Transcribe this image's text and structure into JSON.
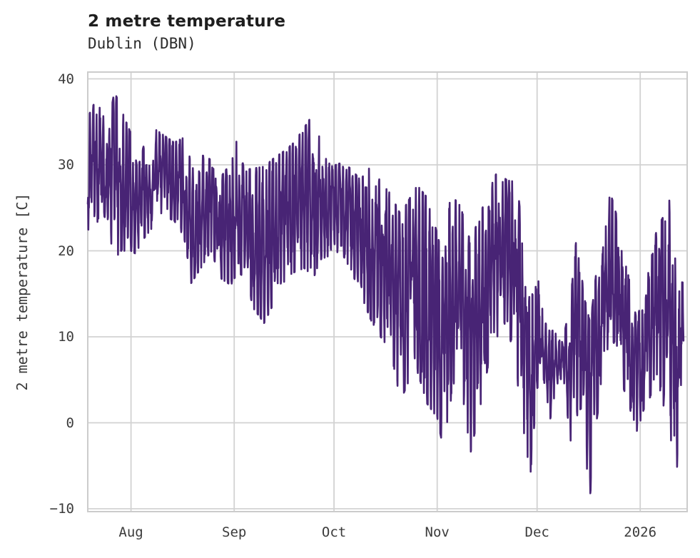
{
  "header": {
    "title": "2 metre temperature",
    "subtitle": "Dublin (DBN)"
  },
  "chart_data": {
    "type": "line",
    "title": "2 metre temperature",
    "subtitle": "Dublin (DBN)",
    "xlabel": "",
    "ylabel": "2 metre temperature [C]",
    "series_name": "2 metre temperature",
    "legend": "none",
    "grid": true,
    "colors": {
      "line": "#482475",
      "grid": "#d2d2d2",
      "plot_border": "#cccccc",
      "title_text": "#1e1e1e",
      "tick_text": "#3b3b3b",
      "background": "#ffffff"
    },
    "y_ticks": [
      {
        "label": "−10",
        "value": -10
      },
      {
        "label": "0",
        "value": 0
      },
      {
        "label": "10",
        "value": 10
      },
      {
        "label": "20",
        "value": 20
      },
      {
        "label": "30",
        "value": 30
      },
      {
        "label": "40",
        "value": 40
      }
    ],
    "ylim": [
      -10.33,
      40.79
    ],
    "x_ticks": [
      {
        "label": "Aug",
        "day": 13
      },
      {
        "label": "Sep",
        "day": 44
      },
      {
        "label": "Oct",
        "day": 74
      },
      {
        "label": "Nov",
        "day": 105
      },
      {
        "label": "Dec",
        "day": 135
      },
      {
        "label": "2026",
        "day": 166
      }
    ],
    "xlim_days": [
      0,
      180.1
    ],
    "data_end_day": 179,
    "sampling": "hourly 2 m air temperature, ~6 months (Jul to mid-Jan)",
    "daily_envelope_day_min_max": [
      [
        0,
        20.3,
        35.5
      ],
      [
        2,
        22,
        37.2
      ],
      [
        4,
        25,
        36.5
      ],
      [
        6,
        23,
        34
      ],
      [
        8,
        19,
        38.6
      ],
      [
        10,
        20,
        36.5
      ],
      [
        13,
        20,
        33.6
      ],
      [
        15,
        19.5,
        29.5
      ],
      [
        17,
        21.5,
        32.5
      ],
      [
        20,
        23,
        34.2
      ],
      [
        23,
        24,
        33.4
      ],
      [
        26,
        23.5,
        32.6
      ],
      [
        29,
        21.5,
        33.2
      ],
      [
        31,
        16.2,
        30.4
      ],
      [
        34,
        18,
        31.2
      ],
      [
        37,
        20,
        30.6
      ],
      [
        40,
        16.8,
        28.6
      ],
      [
        43,
        16,
        30.2
      ],
      [
        45,
        17.5,
        33.2
      ],
      [
        47,
        17,
        29.4
      ],
      [
        50,
        13.2,
        29.6
      ],
      [
        53,
        11.6,
        29.8
      ],
      [
        56,
        14,
        30.8
      ],
      [
        59,
        16.4,
        31.6
      ],
      [
        62,
        17.5,
        32.6
      ],
      [
        65,
        18,
        34.3
      ],
      [
        68,
        17,
        36.1
      ],
      [
        70,
        19,
        32.4
      ],
      [
        73,
        19.5,
        29.8
      ],
      [
        76,
        20,
        30.2
      ],
      [
        79,
        17.8,
        29.6
      ],
      [
        82,
        15,
        28.2
      ],
      [
        85,
        12,
        30.3
      ],
      [
        88,
        10,
        28
      ],
      [
        91,
        8.4,
        26.6
      ],
      [
        94,
        2.5,
        24.2
      ],
      [
        96,
        4.5,
        25.6
      ],
      [
        99,
        6,
        27.6
      ],
      [
        102,
        2.2,
        26.2
      ],
      [
        105,
        0.6,
        22
      ],
      [
        107,
        -3.4,
        18.5
      ],
      [
        109,
        2.5,
        26.6
      ],
      [
        112,
        5,
        25.2
      ],
      [
        115,
        -3.5,
        21
      ],
      [
        118,
        2,
        24.4
      ],
      [
        121,
        8,
        27.4
      ],
      [
        123,
        10,
        29.2
      ],
      [
        126,
        12,
        28.2
      ],
      [
        129,
        5,
        28
      ],
      [
        131,
        -1,
        20.4
      ],
      [
        133,
        -6.1,
        13.5
      ],
      [
        135,
        4,
        20.3
      ],
      [
        137,
        5,
        12
      ],
      [
        139,
        0.5,
        10.5
      ],
      [
        141,
        4.5,
        11.2
      ],
      [
        143,
        5.2,
        10
      ],
      [
        145,
        -2.2,
        14
      ],
      [
        147,
        1,
        22.3
      ],
      [
        149,
        -2.5,
        15
      ],
      [
        151,
        -8.2,
        11.5
      ],
      [
        153,
        0.5,
        18.2
      ],
      [
        155,
        6,
        22
      ],
      [
        157,
        10.2,
        26.8
      ],
      [
        159,
        8.5,
        24
      ],
      [
        161,
        4,
        20
      ],
      [
        163,
        1.5,
        16
      ],
      [
        165,
        -1.2,
        11.8
      ],
      [
        167,
        1.5,
        15.5
      ],
      [
        169,
        3,
        18.5
      ],
      [
        171,
        5.5,
        22.6
      ],
      [
        173,
        2,
        24
      ],
      [
        175,
        -2,
        27
      ],
      [
        177,
        -5.6,
        16.5
      ],
      [
        179,
        6,
        16.3
      ]
    ]
  }
}
